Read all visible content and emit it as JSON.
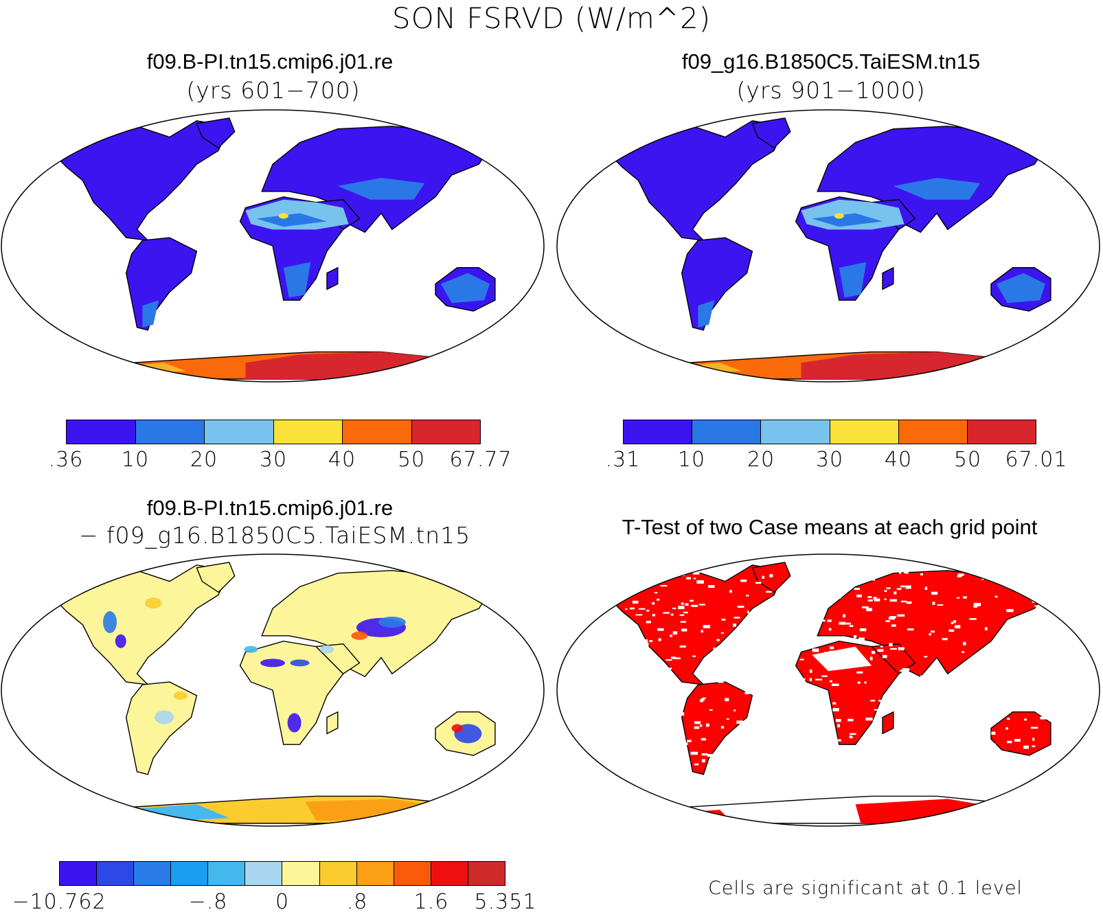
{
  "figure": {
    "title": "SON FSRVD (W/m^2)"
  },
  "panels": {
    "case1": {
      "name": "f09.B-PI.tn15.cmip6.j01.re",
      "years": "(yrs 601−700)",
      "colorbar": {
        "labels": [
          ".36",
          "10",
          "20",
          "30",
          "40",
          "50",
          "67.77"
        ],
        "colors": [
          "#3c14f0",
          "#2a78e6",
          "#78c3ee",
          "#fbe23a",
          "#fb6a0a",
          "#d8262e"
        ]
      }
    },
    "case2": {
      "name": "f09_g16.B1850C5.TaiESM.tn15",
      "years": "(yrs 901−1000)",
      "colorbar": {
        "labels": [
          ".31",
          "10",
          "20",
          "30",
          "40",
          "50",
          "67.01"
        ],
        "colors": [
          "#3c14f0",
          "#2a78e6",
          "#78c3ee",
          "#fbe23a",
          "#fb6a0a",
          "#d8262e"
        ]
      }
    },
    "diff": {
      "name": "f09.B-PI.tn15.cmip6.j01.re",
      "name2": "− f09_g16.B1850C5.TaiESM.tn15",
      "colorbar": {
        "labels": [
          "−10.762",
          "−.8",
          "0",
          ".8",
          "1.6",
          "5.351"
        ],
        "colors": [
          "#3c14f0",
          "#2c48e6",
          "#2a7ae8",
          "#1a9ef0",
          "#45b8ee",
          "#a8d6f0",
          "#fdf59a",
          "#fbcc2e",
          "#fba014",
          "#fb5a0a",
          "#ee1010",
          "#cf2a2a"
        ]
      }
    },
    "ttest": {
      "title": "T-Test of two Case means at each grid point",
      "note": "Cells are significant at 0.1 level",
      "significant_color": "#ff0000"
    }
  }
}
